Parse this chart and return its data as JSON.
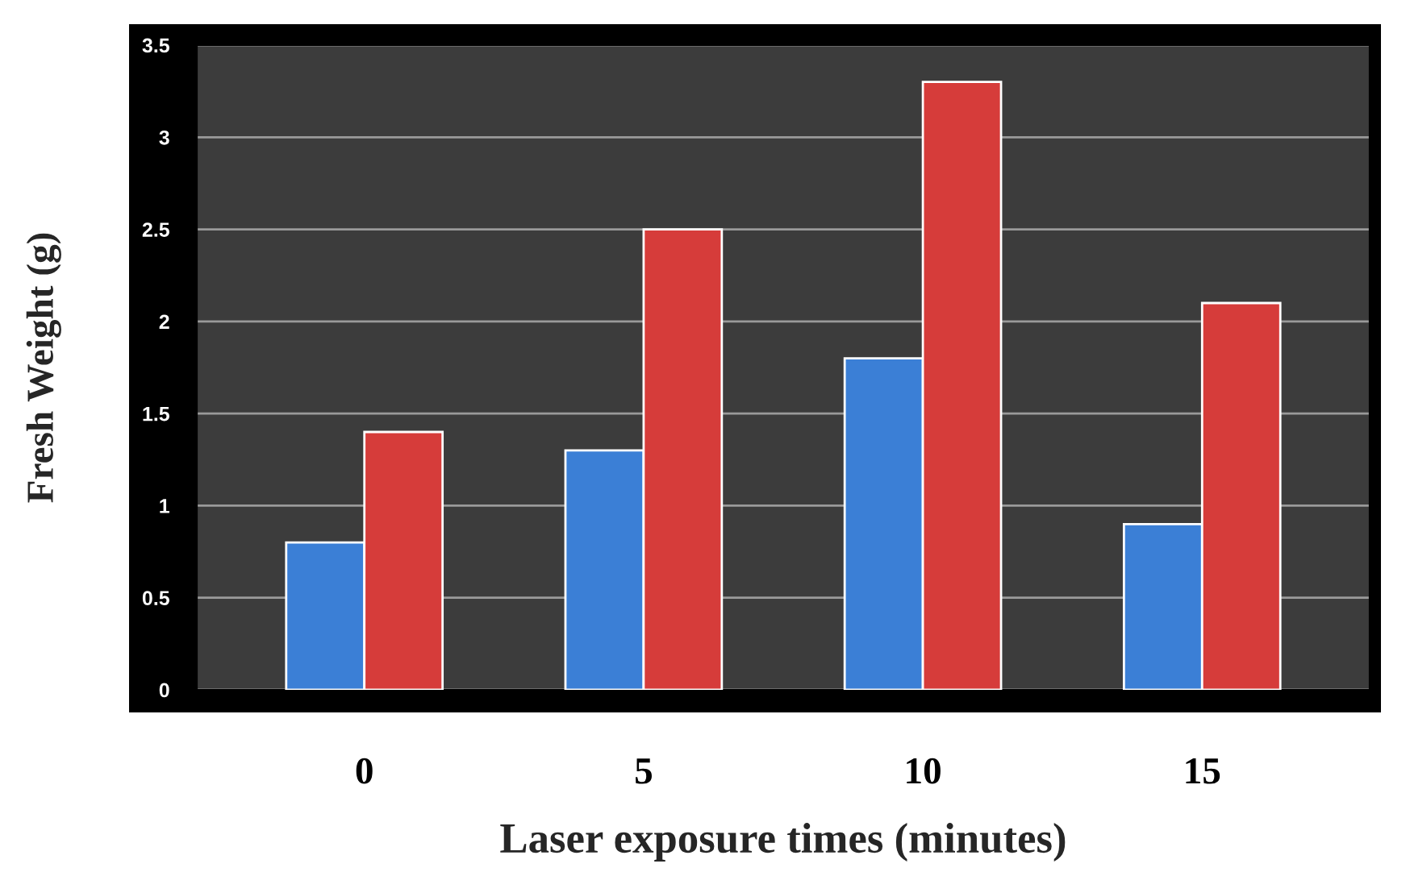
{
  "chart_data": {
    "type": "bar",
    "xlabel": "Laser exposure times (minutes)",
    "ylabel": "Fresh Weight (g)",
    "categories": [
      "0",
      "5",
      "10",
      "15"
    ],
    "series": [
      {
        "color": "#3b7fd6",
        "values": [
          0.8,
          1.3,
          1.8,
          0.9
        ]
      },
      {
        "color": "#d63c3a",
        "values": [
          1.4,
          2.5,
          3.3,
          2.1
        ]
      }
    ],
    "ylim": [
      0,
      3.5
    ],
    "yticks": [
      0,
      0.5,
      1,
      1.5,
      2,
      2.5,
      3,
      3.5
    ],
    "grid": "y",
    "legend": false
  }
}
